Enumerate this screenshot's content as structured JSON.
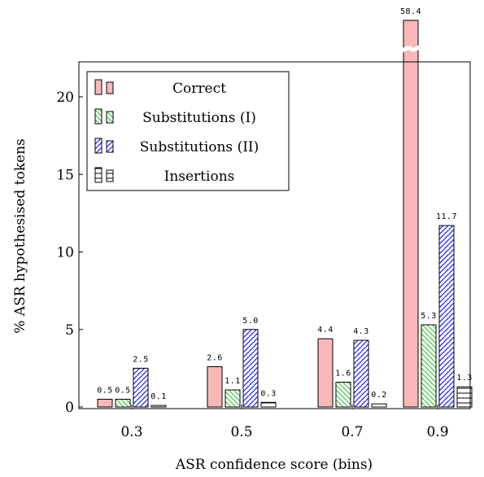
{
  "chart_data": {
    "type": "bar",
    "xlabel": "ASR confidence score (bins)",
    "ylabel": "% ASR hypothesised tokens",
    "categories": [
      "0.3",
      "0.5",
      "0.7",
      "0.9"
    ],
    "ylim": [
      0,
      22
    ],
    "yticks": [
      0,
      5,
      10,
      15,
      20
    ],
    "axis_break": {
      "category": "0.9",
      "series": "Correct",
      "note": "bar truncated with break mark"
    },
    "series": [
      {
        "name": "Correct",
        "values": [
          0.5,
          2.6,
          4.4,
          58.4
        ],
        "labels": [
          "0.5",
          "2.6",
          "4.4",
          "58.4"
        ],
        "color": "#f8b8b8",
        "pattern": "solid"
      },
      {
        "name": "Substitutions (I)",
        "values": [
          0.5,
          1.1,
          1.6,
          5.3
        ],
        "labels": [
          "0.5",
          "1.1",
          "1.6",
          "5.3"
        ],
        "color": "#3fc43f",
        "pattern": "north-west-lines"
      },
      {
        "name": "Substitutions (II)",
        "values": [
          2.5,
          5.0,
          4.3,
          11.7
        ],
        "labels": [
          "2.5",
          "5.0",
          "4.3",
          "11.7"
        ],
        "color": "#1a1aff",
        "pattern": "north-east-lines"
      },
      {
        "name": "Insertions",
        "values": [
          0.1,
          0.3,
          0.2,
          1.3
        ],
        "labels": [
          "0.1",
          "0.3",
          "0.2",
          "1.3"
        ],
        "color": "#000000",
        "pattern": "horizontal-lines"
      }
    ],
    "legend_position": "top-left",
    "grid": false
  }
}
